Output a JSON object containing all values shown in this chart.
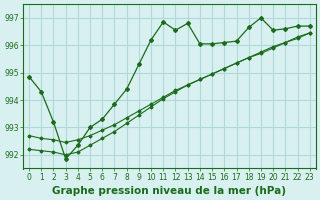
{
  "title": "Graphe pression niveau de la mer (hPa)",
  "bg_color": "#d8f0f0",
  "grid_color": "#b0d8d8",
  "line_color": "#1a6b1a",
  "x_ticks": [
    0,
    1,
    2,
    3,
    4,
    5,
    6,
    7,
    8,
    9,
    10,
    11,
    12,
    13,
    14,
    15,
    16,
    17,
    18,
    19,
    20,
    21,
    22,
    23
  ],
  "y_ticks": [
    992,
    993,
    994,
    995,
    996,
    997
  ],
  "ylim": [
    991.5,
    997.5
  ],
  "xlim": [
    -0.5,
    23.5
  ],
  "line1_x": [
    0,
    1,
    2,
    3,
    4,
    5,
    6,
    7,
    8,
    9,
    10,
    11,
    12,
    13,
    14,
    15,
    16,
    17,
    18,
    19,
    20,
    21,
    22,
    23
  ],
  "line1_y": [
    994.85,
    994.3,
    993.2,
    991.85,
    992.35,
    993.0,
    993.3,
    993.85,
    994.4,
    995.3,
    996.2,
    996.85,
    996.55,
    996.8,
    996.05,
    996.05,
    996.1,
    996.15,
    996.65,
    997.0,
    996.55,
    996.6,
    996.7,
    996.7
  ],
  "line2_x": [
    0,
    1,
    2,
    3,
    4,
    5,
    6,
    7,
    8,
    9,
    10,
    11,
    12,
    13,
    14,
    15,
    16,
    17,
    18,
    19,
    20,
    21,
    22,
    23
  ],
  "line2_y": [
    992.7,
    992.6,
    992.55,
    992.45,
    992.55,
    992.7,
    992.9,
    993.1,
    993.35,
    993.6,
    993.85,
    994.1,
    994.35,
    994.55,
    994.75,
    994.95,
    995.15,
    995.35,
    995.55,
    995.7,
    995.9,
    996.1,
    996.25,
    996.45
  ],
  "line3_x": [
    0,
    1,
    2,
    3,
    4,
    5,
    6,
    7,
    8,
    9,
    10,
    11,
    12,
    13,
    14,
    15,
    16,
    17,
    18,
    19,
    20,
    21,
    22,
    23
  ],
  "line3_y": [
    992.2,
    992.15,
    992.1,
    992.0,
    992.1,
    992.35,
    992.6,
    992.85,
    993.15,
    993.45,
    993.75,
    994.05,
    994.3,
    994.55,
    994.75,
    994.95,
    995.15,
    995.35,
    995.55,
    995.75,
    995.95,
    996.1,
    996.3,
    996.45
  ],
  "title_fontsize": 7.5,
  "tick_fontsize": 5.5
}
